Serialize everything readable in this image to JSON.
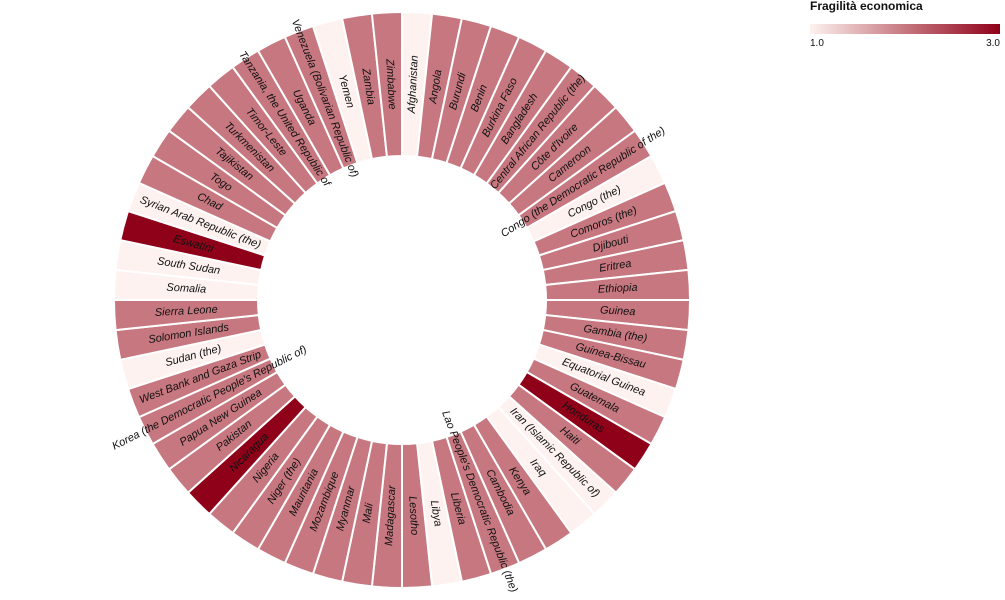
{
  "chart_data": {
    "type": "radial-bar",
    "legend": {
      "title": "Fragilità economica",
      "min_label": "1.0",
      "max_label": "3.0",
      "range": [
        1.0,
        3.0
      ],
      "placement": "top-right"
    },
    "colors": {
      "low": "#fdf2ef",
      "mid": "#c6777f",
      "high": "#8f0019"
    },
    "categories": [
      "Afghanistan",
      "Angola",
      "Burundi",
      "Benin",
      "Burkina Faso",
      "Bangladesh",
      "Central African Republic (the)",
      "Côte d'Ivoire",
      "Cameroon",
      "Congo (the Democratic Republic of the)",
      "Congo (the)",
      "Comoros (the)",
      "Djibouti",
      "Eritrea",
      "Ethiopia",
      "Guinea",
      "Gambia (the)",
      "Guinea-Bissau",
      "Equatorial Guinea",
      "Guatemala",
      "Honduras",
      "Haiti",
      "Iran (Islamic Republic of)",
      "Iraq",
      "Kenya",
      "Cambodia",
      "Lao People's Democratic Republic (the)",
      "Liberia",
      "Libya",
      "Lesotho",
      "Madagascar",
      "Mali",
      "Myanmar",
      "Mozambique",
      "Mauritania",
      "Niger (the)",
      "Nigeria",
      "Nicaragua",
      "Pakistan",
      "Papua New Guinea",
      "Korea (the Democratic People's Republic of)",
      "West Bank and Gaza Strip",
      "Sudan (the)",
      "Solomon Islands",
      "Sierra Leone",
      "Somalia",
      "South Sudan",
      "Eswatini",
      "Syrian Arab Republic (the)",
      "Chad",
      "Togo",
      "Tajikistan",
      "Turkmenistan",
      "Timor-Leste",
      "Tanzania, the United Republic of",
      "Uganda",
      "Venezuela (Bolivarian Republic of)",
      "Yemen",
      "Zambia",
      "Zimbabwe"
    ],
    "values": [
      1,
      2,
      2,
      2,
      2,
      2,
      2,
      2,
      2,
      2,
      1,
      2,
      2,
      2,
      2,
      2,
      2,
      2,
      1,
      2,
      3,
      2,
      1,
      1,
      2,
      2,
      2,
      2,
      1,
      2,
      2,
      2,
      2,
      2,
      2,
      2,
      2,
      3,
      2,
      2,
      2,
      2,
      1,
      2,
      2,
      1,
      1,
      3,
      1,
      2,
      2,
      2,
      2,
      2,
      2,
      2,
      2,
      1,
      2,
      2
    ]
  }
}
